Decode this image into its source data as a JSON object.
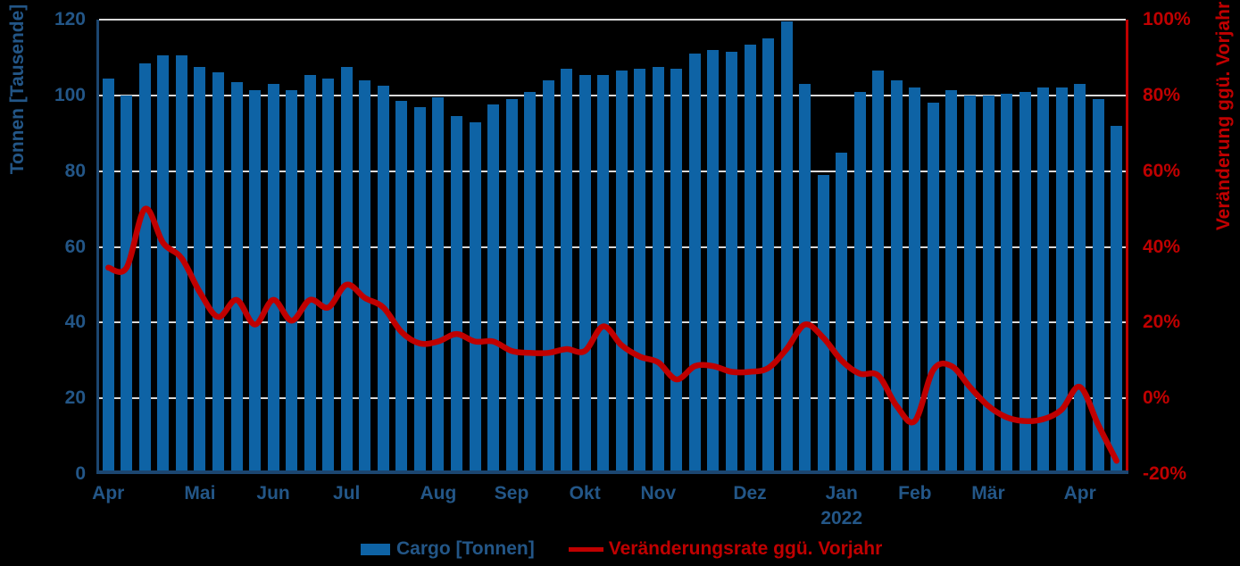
{
  "chart_data": {
    "type": "bar",
    "subtype": "combo-bar-line-dual-axis",
    "x": {
      "unit": "week",
      "n_points": 56,
      "month_ticks": [
        {
          "label": "Apr",
          "week": 0
        },
        {
          "label": "Mai",
          "week": 5
        },
        {
          "label": "Jun",
          "week": 9
        },
        {
          "label": "Jul",
          "week": 13
        },
        {
          "label": "Aug",
          "week": 18
        },
        {
          "label": "Sep",
          "week": 22
        },
        {
          "label": "Okt",
          "week": 26
        },
        {
          "label": "Nov",
          "week": 30
        },
        {
          "label": "Dez",
          "week": 35
        },
        {
          "label": "Jan",
          "week": 40
        },
        {
          "label": "Feb",
          "week": 44
        },
        {
          "label": "Mär",
          "week": 48
        },
        {
          "label": "Apr",
          "week": 53
        }
      ],
      "year_label": {
        "text": "2022",
        "week": 40
      }
    },
    "series": [
      {
        "name": "Cargo [Tonnen]",
        "type": "bar",
        "axis": "left",
        "color": "#0E63A5",
        "values": [
          104.5,
          100,
          108.5,
          110.5,
          110.5,
          107.5,
          106,
          103.5,
          101.5,
          103,
          101.5,
          105.5,
          104.5,
          107.5,
          104,
          102.5,
          98.5,
          97,
          99.5,
          94.5,
          93,
          97.5,
          99,
          101,
          104,
          107,
          105.5,
          105.5,
          106.5,
          107,
          107.5,
          107,
          111,
          112,
          111.5,
          113.5,
          115,
          119.5,
          103,
          79,
          85,
          101,
          106.5,
          104,
          102,
          98,
          101.5,
          100,
          100,
          100.5,
          101,
          102,
          102,
          103,
          99,
          92
        ]
      },
      {
        "name": "Veränderungsrate ggü. Vorjahr",
        "type": "line",
        "axis": "right",
        "color": "#C00000",
        "values_percent": [
          34.5,
          34.5,
          50,
          41,
          37,
          28,
          21.5,
          26,
          19.5,
          26,
          20.5,
          26,
          24,
          30,
          26.5,
          24,
          17.5,
          14.5,
          15,
          17,
          15,
          15,
          12.5,
          12,
          12,
          13,
          12.5,
          19,
          14,
          11,
          9.5,
          5,
          8.5,
          8.5,
          7,
          7,
          8,
          13,
          19.5,
          16,
          10,
          6.5,
          6,
          -2,
          -6,
          7.5,
          8.5,
          3,
          -2,
          -5,
          -6,
          -5.5,
          -3,
          3,
          -7,
          -16.5
        ]
      }
    ],
    "left_axis": {
      "title": "Tonnen [Tausende]",
      "min": 0,
      "max": 120,
      "step": 20,
      "tick_labels": [
        "0",
        "20",
        "40",
        "60",
        "80",
        "100",
        "120"
      ]
    },
    "right_axis": {
      "title": "Veränderung ggü. Vorjahr",
      "min": -20,
      "max": 100,
      "step": 20,
      "tick_labels": [
        "-20%",
        "0%",
        "20%",
        "40%",
        "60%",
        "80%",
        "100%"
      ]
    },
    "grid": "horizontal",
    "legend_position": "bottom"
  },
  "legend": {
    "bar_label": "Cargo [Tonnen]",
    "line_label": "Veränderungsrate ggü. Vorjahr"
  },
  "colors": {
    "background": "#000000",
    "bar": "#0E63A5",
    "line": "#C00000",
    "gridline": "#D9D9D9",
    "blue_text": "#235687",
    "navy_axis_line": "#1C4670"
  }
}
